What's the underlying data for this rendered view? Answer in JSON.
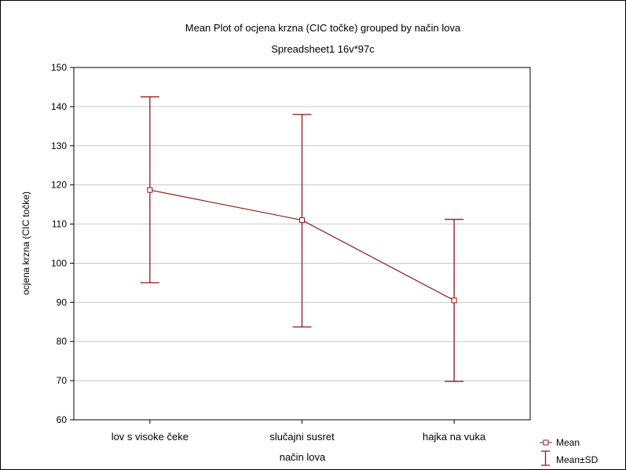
{
  "colors": {
    "series": "#8b1a1a",
    "grid": "#c8c8c8",
    "axis": "#000000",
    "background": "#ffffff"
  },
  "chart_data": {
    "type": "line",
    "title": "Mean Plot of ocjena krzna (CIC točke) grouped by  način lova",
    "subtitle": "Spreadsheet1 16v*97c",
    "xlabel": "način lova",
    "ylabel": "ocjena krzna (CIC točke)",
    "categories": [
      "lov s visoke čeke",
      "slučajni susret",
      "hajka na vuka"
    ],
    "ylim": [
      60,
      150
    ],
    "yticks": [
      60,
      70,
      80,
      90,
      100,
      110,
      120,
      130,
      140,
      150
    ],
    "grid": true,
    "legend_position": "bottom-right",
    "series": [
      {
        "name": "Mean",
        "values": [
          118.7,
          111.0,
          90.5
        ],
        "error_upper": [
          142.5,
          138.0,
          111.2
        ],
        "error_lower": [
          95.0,
          83.7,
          69.8
        ],
        "error_label": "Mean±SD"
      }
    ],
    "legend": [
      {
        "label": "Mean",
        "symbol": "square-marker-line"
      },
      {
        "label": "Mean±SD",
        "symbol": "error-bar"
      }
    ]
  }
}
